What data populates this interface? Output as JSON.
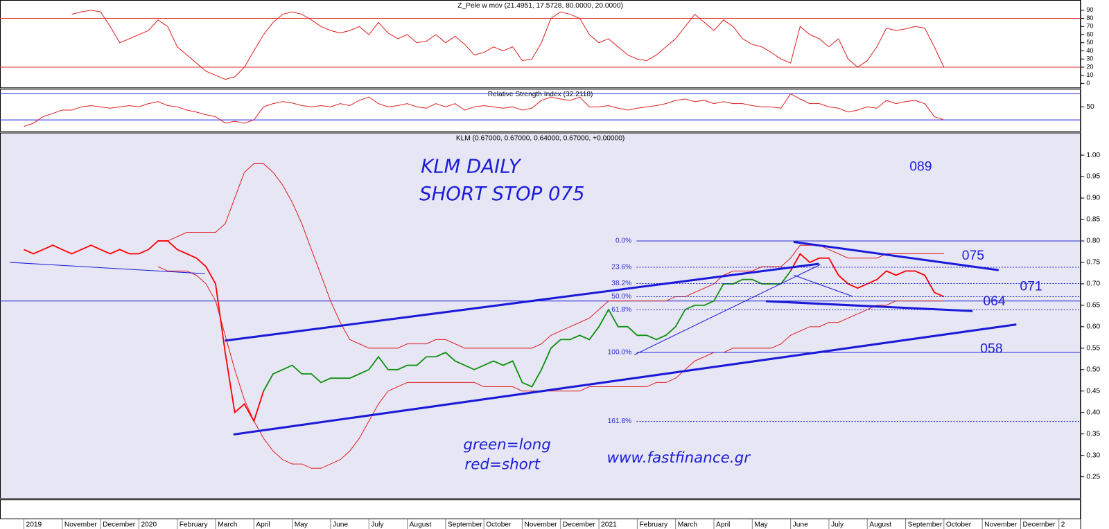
{
  "chart_data": {
    "type": "stock",
    "categories": [
      "2019",
      null,
      null,
      null,
      "November",
      null,
      null,
      null,
      "December",
      null,
      null,
      null,
      "2020",
      null,
      null,
      null,
      "February",
      null,
      null,
      null,
      "March",
      null,
      null,
      null,
      "April",
      null,
      null,
      null,
      "May",
      null,
      null,
      null,
      "June",
      null,
      null,
      null,
      "July",
      null,
      null,
      null,
      "August",
      null,
      null,
      null,
      "September",
      null,
      null,
      null,
      "October",
      null,
      null,
      null,
      "November",
      null,
      null,
      null,
      "December",
      null,
      null,
      null,
      "2021",
      null,
      null,
      null,
      "February",
      null,
      null,
      null,
      "March",
      null,
      null,
      null,
      "April",
      null,
      null,
      null,
      "May",
      null,
      null,
      null,
      "June",
      null,
      null,
      null,
      "July",
      null,
      null,
      null,
      "August",
      null,
      null,
      null,
      "September",
      null,
      null,
      null,
      "October",
      null,
      null,
      null,
      "November",
      null,
      null,
      null,
      "December",
      null,
      null,
      null,
      "2"
    ],
    "panels": [
      {
        "title": "Z_Pele w mov (21.4951, 17.5728, 80.0000, 20.0000)",
        "ylim": [
          -5,
          102.6
        ],
        "yticks": [
          0,
          10,
          20,
          30,
          40,
          50,
          60,
          70,
          80,
          90
        ],
        "levels": [
          80,
          20
        ],
        "level_color": "#e03030",
        "series": [
          {
            "color": "#e02020",
            "values": [
              null,
              null,
              null,
              null,
              null,
              85,
              88,
              90,
              88,
              70,
              50,
              55,
              60,
              65,
              78,
              70,
              45,
              35,
              25,
              15,
              10,
              5,
              8,
              20,
              40,
              60,
              75,
              85,
              88,
              85,
              78,
              70,
              65,
              62,
              65,
              70,
              60,
              75,
              62,
              55,
              60,
              50,
              52,
              60,
              50,
              58,
              48,
              35,
              38,
              45,
              40,
              45,
              28,
              30,
              50,
              80,
              88,
              85,
              80,
              60,
              50,
              55,
              45,
              35,
              30,
              28,
              35,
              45,
              55,
              70,
              85,
              75,
              65,
              78,
              70,
              55,
              48,
              45,
              38,
              30,
              25,
              70,
              60,
              55,
              45,
              55,
              30,
              20,
              28,
              45,
              68,
              65,
              67,
              70,
              68,
              45,
              20,
              null,
              null,
              null,
              null,
              null,
              null,
              null,
              null,
              null,
              null,
              null,
              null
            ]
          }
        ]
      },
      {
        "title": "Relative Strength Index (32.2118)",
        "ylim": [
          12.7,
          77.6
        ],
        "yticks": [
          50
        ],
        "levels": [
          70,
          30
        ],
        "level_color": "#3030e0",
        "series": [
          {
            "color": "#e02020",
            "values": [
              20,
              25,
              35,
              40,
              45,
              45,
              50,
              52,
              50,
              48,
              50,
              52,
              50,
              55,
              58,
              52,
              50,
              45,
              42,
              38,
              35,
              25,
              28,
              25,
              30,
              50,
              55,
              58,
              56,
              52,
              50,
              52,
              50,
              55,
              52,
              60,
              65,
              55,
              50,
              52,
              55,
              50,
              48,
              55,
              50,
              55,
              45,
              50,
              52,
              50,
              48,
              50,
              45,
              48,
              60,
              65,
              62,
              60,
              65,
              50,
              50,
              52,
              48,
              45,
              48,
              50,
              52,
              55,
              60,
              62,
              58,
              60,
              55,
              58,
              55,
              55,
              52,
              50,
              50,
              48,
              70,
              62,
              55,
              55,
              50,
              48,
              42,
              45,
              50,
              48,
              60,
              55,
              58,
              60,
              55,
              35,
              30,
              null,
              null,
              null,
              null,
              null,
              null,
              null,
              null,
              null,
              null,
              null,
              null
            ]
          }
        ]
      },
      {
        "title": "KLM (0.67000, 0.67000, 0.64000, 0.67000, +0.00000)",
        "ylim": [
          0.2007,
          1.0526
        ],
        "yticks": [
          0.25,
          {
            "value": 0.3,
            "label": "0.30"
          },
          0.35,
          {
            "value": 0.4,
            "label": "0.40"
          },
          0.45,
          {
            "value": 0.5,
            "label": "0.50"
          },
          0.55,
          {
            "value": 0.6,
            "label": "0.60"
          },
          0.65,
          {
            "value": 0.7,
            "label": "0.70"
          },
          0.75,
          {
            "value": 0.8,
            "label": "0.80"
          },
          0.85,
          {
            "value": 0.9,
            "label": "0.90"
          },
          0.95,
          {
            "value": 1,
            "label": "1.00"
          }
        ],
        "levels": [
          0.66
        ],
        "level_color": "#3030d0",
        "series": [
          {
            "color": "#e02020",
            "values": [
              null,
              null,
              null,
              null,
              null,
              null,
              null,
              null,
              null,
              null,
              null,
              null,
              null,
              null,
              0.8,
              0.8,
              0.81,
              0.82,
              0.82,
              0.82,
              0.82,
              0.84,
              0.9,
              0.96,
              0.98,
              0.98,
              0.96,
              0.93,
              0.89,
              0.84,
              0.78,
              0.72,
              0.66,
              0.61,
              0.57,
              0.56,
              0.55,
              0.55,
              0.55,
              0.55,
              0.56,
              0.56,
              0.56,
              0.57,
              0.57,
              0.56,
              0.55,
              0.55,
              0.55,
              0.55,
              0.55,
              0.55,
              0.55,
              0.55,
              0.56,
              0.58,
              0.59,
              0.6,
              0.61,
              0.62,
              0.64,
              0.66,
              0.66,
              0.66,
              0.66,
              0.66,
              0.66,
              0.66,
              0.67,
              0.67,
              0.68,
              0.69,
              0.7,
              0.72,
              0.73,
              0.73,
              0.73,
              0.74,
              0.74,
              0.74,
              0.76,
              0.79,
              0.79,
              0.79,
              0.78,
              0.77,
              0.76,
              0.76,
              0.76,
              0.76,
              0.77,
              0.77,
              0.77,
              0.77,
              0.77,
              0.77,
              0.77,
              null,
              null,
              null,
              null,
              null,
              null,
              null,
              null,
              null,
              null,
              null,
              null
            ]
          },
          {
            "color": "#e02020",
            "values": [
              null,
              null,
              null,
              null,
              null,
              null,
              null,
              null,
              null,
              null,
              null,
              null,
              null,
              null,
              0.74,
              0.73,
              0.73,
              0.73,
              0.72,
              0.7,
              0.66,
              0.58,
              0.5,
              0.43,
              0.38,
              0.34,
              0.31,
              0.29,
              0.28,
              0.28,
              0.27,
              0.27,
              0.28,
              0.29,
              0.31,
              0.34,
              0.38,
              0.42,
              0.45,
              0.46,
              0.47,
              0.47,
              0.47,
              0.47,
              0.47,
              0.47,
              0.47,
              0.47,
              0.46,
              0.46,
              0.46,
              0.46,
              0.45,
              0.45,
              0.45,
              0.45,
              0.45,
              0.45,
              0.45,
              0.46,
              0.46,
              0.46,
              0.46,
              0.46,
              0.46,
              0.46,
              0.47,
              0.47,
              0.48,
              0.5,
              0.52,
              0.53,
              0.54,
              0.54,
              0.55,
              0.55,
              0.55,
              0.55,
              0.55,
              0.56,
              0.58,
              0.59,
              0.6,
              0.6,
              0.61,
              0.61,
              0.62,
              0.63,
              0.64,
              0.65,
              0.65,
              0.66,
              0.66,
              0.66,
              0.66,
              0.66,
              0.66,
              null,
              null,
              null,
              null,
              null,
              null,
              null,
              null,
              null,
              null,
              null,
              null
            ]
          },
          {
            "color": "#ff0000",
            "values": [
              0.78,
              0.77,
              0.78,
              0.79,
              0.78,
              0.77,
              0.78,
              0.79,
              0.78,
              0.77,
              0.78,
              0.77,
              0.77,
              0.78,
              0.8,
              0.8,
              0.78,
              0.77,
              0.76,
              0.74,
              0.7,
              0.54,
              0.4,
              0.42,
              0.38,
              0.45,
              null,
              null,
              null,
              null,
              null,
              null,
              null,
              null,
              null,
              null,
              null,
              null,
              null,
              null,
              null,
              null,
              null,
              null,
              null,
              null,
              null,
              null,
              null,
              null,
              null,
              null,
              null,
              null,
              null,
              null,
              null,
              null,
              null,
              null,
              null,
              null,
              null,
              null,
              null,
              null,
              null,
              null,
              null,
              null,
              null,
              null,
              null,
              null,
              null,
              null,
              null,
              null,
              null,
              null,
              0.73,
              0.77,
              0.75,
              0.76,
              0.76,
              0.72,
              0.7,
              0.69,
              0.7,
              0.71,
              0.73,
              0.72,
              0.73,
              0.73,
              0.72,
              0.68,
              0.67,
              null,
              null,
              null,
              null,
              null,
              null,
              null,
              null,
              null,
              null,
              null,
              null
            ]
          },
          {
            "color": "#109010",
            "values": [
              null,
              null,
              null,
              null,
              null,
              null,
              null,
              null,
              null,
              null,
              null,
              null,
              null,
              null,
              null,
              null,
              null,
              null,
              null,
              null,
              null,
              null,
              null,
              null,
              null,
              0.45,
              0.49,
              0.5,
              0.51,
              0.49,
              0.49,
              0.47,
              0.48,
              0.48,
              0.48,
              0.49,
              0.5,
              0.53,
              0.5,
              0.5,
              0.51,
              0.51,
              0.53,
              0.53,
              0.54,
              0.52,
              0.51,
              0.5,
              0.51,
              0.52,
              0.51,
              0.52,
              0.47,
              0.46,
              0.5,
              0.55,
              0.57,
              0.57,
              0.58,
              0.57,
              0.6,
              0.64,
              0.6,
              0.6,
              0.58,
              0.58,
              0.57,
              0.58,
              0.6,
              0.64,
              0.65,
              0.65,
              0.66,
              0.7,
              0.7,
              0.71,
              0.71,
              0.7,
              0.7,
              0.7,
              0.73,
              null,
              null,
              null,
              null,
              null,
              null,
              null,
              null,
              null,
              null,
              null,
              null,
              null,
              null,
              null,
              null,
              null,
              null,
              null,
              null,
              null,
              null,
              null,
              null,
              null,
              null,
              null,
              null
            ]
          }
        ]
      }
    ],
    "fibonacci": [
      {
        "label": "0.0%",
        "level": 0.8
      },
      {
        "label": "23.6%",
        "level": 0.7386
      },
      {
        "label": "38.2%",
        "level": 0.7007
      },
      {
        "label": "50.0%",
        "level": 0.67
      },
      {
        "label": "61.8%",
        "level": 0.6393
      },
      {
        "label": "100.0%",
        "level": 0.54
      },
      {
        "label": "161.8%",
        "level": 0.3793
      }
    ],
    "annotations": [
      "KLM DAILY",
      "SHORT STOP 075",
      "089",
      "075",
      "071",
      "064",
      "058",
      "green=long",
      "red=short",
      "www.fastfinance.gr"
    ]
  }
}
